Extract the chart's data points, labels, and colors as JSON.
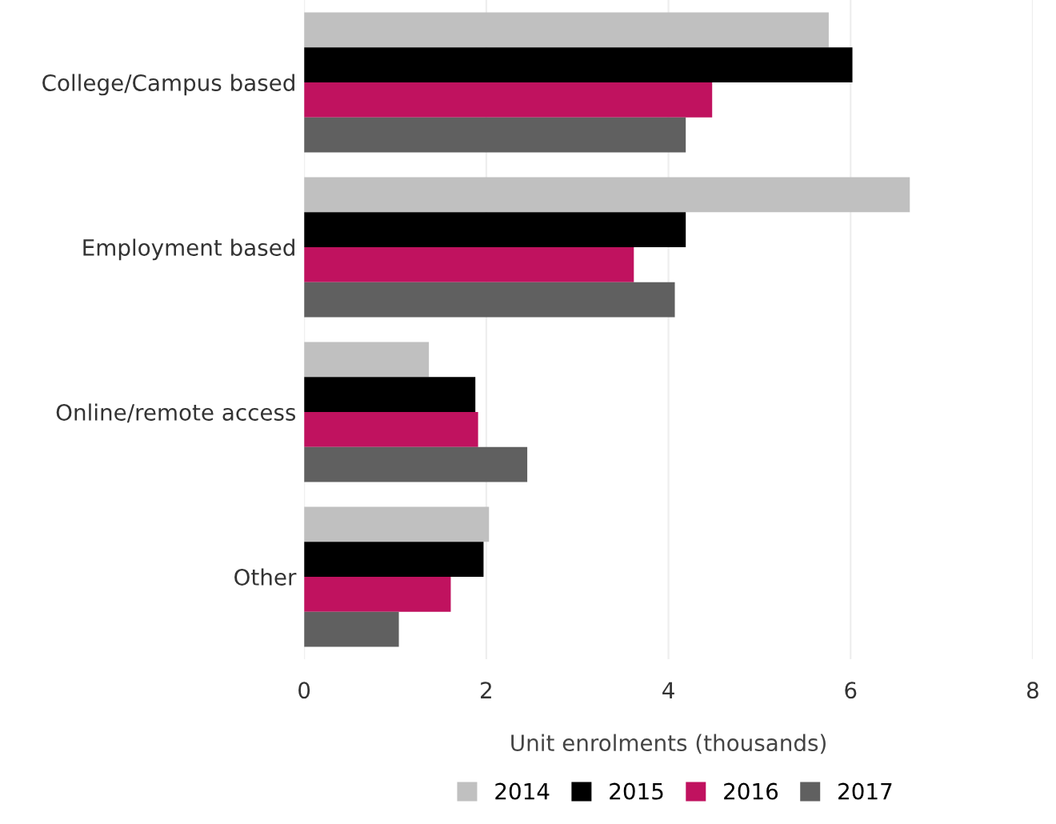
{
  "chart_data": {
    "type": "bar",
    "orientation": "horizontal",
    "xlabel": "Unit enrolments (thousands)",
    "categories": [
      "College/Campus based",
      "Employment based",
      "Online/remote access",
      "Other"
    ],
    "series": [
      {
        "name": "2014",
        "color": "#c0c0c0",
        "values": [
          5.76,
          6.65,
          1.37,
          2.03
        ]
      },
      {
        "name": "2015",
        "color": "#000000",
        "values": [
          6.02,
          4.19,
          1.88,
          1.97
        ]
      },
      {
        "name": "2016",
        "color": "#c0125f",
        "values": [
          4.48,
          3.62,
          1.91,
          1.61
        ]
      },
      {
        "name": "2017",
        "color": "#606060",
        "values": [
          4.19,
          4.07,
          2.45,
          1.04
        ]
      }
    ],
    "xlim": [
      0,
      8
    ],
    "xticks": [
      0,
      2,
      4,
      6,
      8
    ],
    "grid": "x",
    "legend": "bottom"
  }
}
